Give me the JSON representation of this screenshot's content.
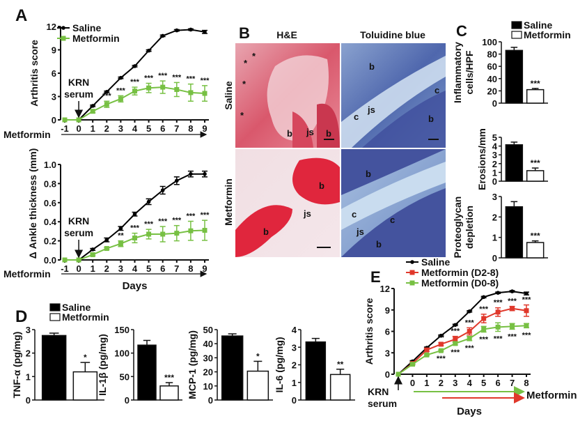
{
  "panel_labels": {
    "A": "A",
    "B": "B",
    "C": "C",
    "D": "D",
    "E": "E"
  },
  "colors": {
    "saline": "#000000",
    "metformin": "#77c043",
    "metformin_d2_8": "#e0382b",
    "metformin_d0_8": "#77c043"
  },
  "panel_B": {
    "col_headers": [
      "H&E",
      "Toluidine blue"
    ],
    "row_labels": [
      "Saline",
      "Metformin"
    ],
    "annotations": {
      "saline_he": [
        "*",
        "*",
        "*",
        "*",
        "b",
        "js",
        "b"
      ],
      "saline_tb": [
        "b",
        "c",
        "js",
        "c",
        "b"
      ],
      "metformin_he": [
        "b",
        "js",
        "b"
      ],
      "metformin_tb": [
        "b",
        "c",
        "js",
        "c",
        "b"
      ]
    }
  },
  "chart_data": [
    {
      "panel": "A",
      "type": "line",
      "ylabel": "Arthritis score",
      "x": [
        -1,
        0,
        1,
        2,
        3,
        4,
        5,
        6,
        7,
        8,
        9
      ],
      "ylim": [
        0,
        12
      ],
      "yticks": [
        0,
        3,
        6,
        9,
        12
      ],
      "annotation": "KRN serum",
      "treatment_arrow_label": "Metformin",
      "legend": "top-left",
      "series": [
        {
          "name": "Saline",
          "color": "#000000",
          "values": [
            0,
            0,
            1.8,
            3.6,
            5.4,
            6.9,
            8.9,
            10.8,
            11.5,
            11.6,
            11.3
          ],
          "errors": [
            0,
            0,
            0.1,
            0.1,
            0.1,
            0.1,
            0.1,
            0.1,
            0.1,
            0.1,
            0.2
          ]
        },
        {
          "name": "Metformin",
          "color": "#77c043",
          "values": [
            0,
            0,
            1.1,
            2.0,
            2.7,
            3.7,
            4.1,
            4.2,
            3.9,
            3.5,
            3.4
          ],
          "errors": [
            0,
            0,
            0.2,
            0.4,
            0.4,
            0.5,
            0.6,
            0.8,
            0.9,
            1.1,
            1.0
          ],
          "significance": [
            "",
            "",
            "",
            "***",
            "***",
            "***",
            "***",
            "***",
            "***",
            "***",
            "***"
          ]
        }
      ]
    },
    {
      "panel": "A",
      "type": "line",
      "ylabel": "Δ Ankle thickness (mm)",
      "xlabel": "Days",
      "x": [
        -1,
        0,
        1,
        2,
        3,
        4,
        5,
        6,
        7,
        8,
        9
      ],
      "ylim": [
        0,
        1.0
      ],
      "yticks": [
        "0.0",
        "0.2",
        "0.4",
        "0.6",
        "0.8",
        "1.0"
      ],
      "annotation": "KRN serum",
      "treatment_arrow_label": "Metformin",
      "series": [
        {
          "name": "Saline",
          "color": "#000000",
          "values": [
            0,
            0,
            0.11,
            0.21,
            0.33,
            0.48,
            0.61,
            0.73,
            0.83,
            0.9,
            0.9
          ],
          "errors": [
            0,
            0,
            0.01,
            0.02,
            0.02,
            0.02,
            0.03,
            0.04,
            0.04,
            0.03,
            0.03
          ]
        },
        {
          "name": "Metformin",
          "color": "#77c043",
          "values": [
            0,
            0,
            0.055,
            0.12,
            0.17,
            0.23,
            0.27,
            0.27,
            0.28,
            0.305,
            0.31
          ],
          "errors": [
            0,
            0,
            0.01,
            0.01,
            0.03,
            0.05,
            0.05,
            0.08,
            0.08,
            0.1,
            0.105
          ],
          "significance": [
            "",
            "",
            "",
            "",
            "**",
            "***",
            "***",
            "***",
            "***",
            "***",
            "***"
          ]
        }
      ]
    },
    {
      "panel": "C",
      "type": "bar",
      "ylabel": "Inflammatory cells/HPF",
      "ylim": [
        0,
        100
      ],
      "yticks": [
        0,
        20,
        40,
        60,
        80,
        100
      ],
      "legend": [
        "Saline",
        "Metformin"
      ],
      "categories": [
        "Saline",
        "Metformin"
      ],
      "values": [
        86,
        22
      ],
      "errors": [
        5,
        2
      ],
      "significance": [
        "",
        "***"
      ]
    },
    {
      "panel": "C",
      "type": "bar",
      "ylabel": "Erosions/mm",
      "ylim": [
        0,
        5
      ],
      "yticks": [
        0,
        1,
        2,
        3,
        4,
        5
      ],
      "categories": [
        "Saline",
        "Metformin"
      ],
      "values": [
        4.15,
        1.2
      ],
      "errors": [
        0.3,
        0.3
      ],
      "significance": [
        "",
        "***"
      ]
    },
    {
      "panel": "C",
      "type": "bar",
      "ylabel": "Proteoglycan depletion",
      "ylim": [
        0,
        3
      ],
      "yticks": [
        0,
        1,
        2,
        3
      ],
      "categories": [
        "Saline",
        "Metformin"
      ],
      "values": [
        2.5,
        0.75
      ],
      "errors": [
        0.25,
        0.08
      ],
      "significance": [
        "",
        "***"
      ]
    },
    {
      "panel": "D",
      "type": "bar",
      "ylabel": "TNF-α (pg/mg)",
      "ylim": [
        0,
        3
      ],
      "yticks": [
        0,
        1,
        2,
        3
      ],
      "legend": [
        "Saline",
        "Metformin"
      ],
      "categories": [
        "Saline",
        "Metformin"
      ],
      "values": [
        2.75,
        1.2
      ],
      "errors": [
        0.1,
        0.4
      ],
      "significance": [
        "",
        "*"
      ]
    },
    {
      "panel": "D",
      "type": "bar",
      "ylabel": "IL-1β (pg/mg)",
      "ylim": [
        0,
        150
      ],
      "yticks": [
        0,
        50,
        100,
        150
      ],
      "categories": [
        "Saline",
        "Metformin"
      ],
      "values": [
        117,
        30
      ],
      "errors": [
        10,
        7
      ],
      "significance": [
        "",
        "***"
      ]
    },
    {
      "panel": "D",
      "type": "bar",
      "ylabel": "MCP-1 (pg/mg)",
      "ylim": [
        0,
        50
      ],
      "yticks": [
        0,
        10,
        20,
        30,
        40,
        50
      ],
      "categories": [
        "Saline",
        "Metformin"
      ],
      "values": [
        45.5,
        20.5
      ],
      "errors": [
        1.5,
        7
      ],
      "significance": [
        "",
        "*"
      ]
    },
    {
      "panel": "D",
      "type": "bar",
      "ylabel": "IL-6 (pg/mg)",
      "ylim": [
        0,
        4
      ],
      "yticks": [
        0,
        1,
        2,
        3,
        4
      ],
      "categories": [
        "Saline",
        "Metformin"
      ],
      "values": [
        3.3,
        1.45
      ],
      "errors": [
        0.2,
        0.3
      ],
      "significance": [
        "",
        "**"
      ]
    },
    {
      "panel": "E",
      "type": "line",
      "ylabel": "Arthritis score",
      "xlabel": "Days",
      "x": [
        -1,
        0,
        1,
        2,
        3,
        4,
        5,
        6,
        7,
        8
      ],
      "xticks": [
        0,
        1,
        2,
        3,
        4,
        5,
        6,
        7,
        8
      ],
      "ylim": [
        0,
        12
      ],
      "yticks": [
        0,
        3,
        6,
        9,
        12
      ],
      "annotation": "KRN serum",
      "treatment_arrow_label": "Metformin",
      "legend": "top-left",
      "series": [
        {
          "name": "Saline",
          "color": "#000000",
          "values": [
            0,
            1.8,
            3.7,
            5.4,
            6.9,
            8.8,
            10.8,
            11.4,
            11.6,
            11.3
          ],
          "errors": [
            0,
            0.1,
            0.1,
            0.1,
            0.1,
            0.1,
            0.1,
            0.1,
            0.1,
            0.2
          ]
        },
        {
          "name": "Metformin (D2-8)",
          "color": "#e0382b",
          "values": [
            0,
            1.5,
            3.4,
            4.2,
            4.9,
            6.0,
            7.8,
            8.7,
            9.2,
            8.9
          ],
          "errors": [
            0,
            0.1,
            0.2,
            0.2,
            0.4,
            0.5,
            0.6,
            0.6,
            0.3,
            0.8
          ],
          "significance": [
            "",
            "",
            "",
            "**",
            "***",
            "***",
            "***",
            "***",
            "***",
            "***"
          ]
        },
        {
          "name": "Metformin (D0-8)",
          "color": "#77c043",
          "values": [
            0,
            1.4,
            2.7,
            3.3,
            4.3,
            5.0,
            6.3,
            6.6,
            6.7,
            6.8
          ],
          "errors": [
            0,
            0.1,
            0.1,
            0.1,
            0.2,
            0.3,
            0.4,
            0.6,
            0.4,
            0.3
          ],
          "significance": [
            "",
            "",
            "",
            "***",
            "***",
            "***",
            "***",
            "***",
            "***",
            "***"
          ]
        }
      ]
    }
  ]
}
